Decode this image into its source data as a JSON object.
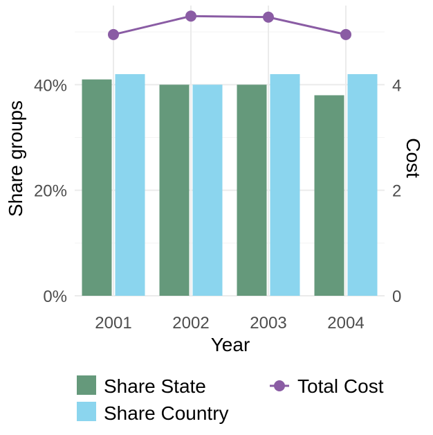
{
  "chart_data": {
    "type": "bar",
    "categories": [
      "2001",
      "2002",
      "2003",
      "2004"
    ],
    "series": [
      {
        "name": "Share State",
        "kind": "bar",
        "axis": "left",
        "color": "#65997B",
        "values": [
          0.41,
          0.4,
          0.4,
          0.38
        ]
      },
      {
        "name": "Share Country",
        "kind": "bar",
        "axis": "left",
        "color": "#8BD5EE",
        "values": [
          0.42,
          0.4,
          0.42,
          0.42
        ]
      },
      {
        "name": "Total Cost",
        "kind": "line",
        "axis": "right",
        "color": "#8A5CA4",
        "values": [
          4.95,
          5.3,
          5.28,
          4.95
        ]
      }
    ],
    "xlabel": "Year",
    "ylabel": "Share groups",
    "y2label": "Cost",
    "ylim": [
      0,
      0.55
    ],
    "y2lim": [
      0,
      5.5
    ],
    "yticks": [
      0,
      0.2,
      0.4
    ],
    "yticklabels": [
      "0%",
      "20%",
      "40%"
    ],
    "y2ticks": [
      0,
      2,
      4
    ],
    "y2ticklabels": [
      "0",
      "2",
      "4"
    ],
    "grid": true,
    "legend_position": "bottom",
    "legend": [
      "Share State",
      "Share Country",
      "Total Cost"
    ]
  }
}
